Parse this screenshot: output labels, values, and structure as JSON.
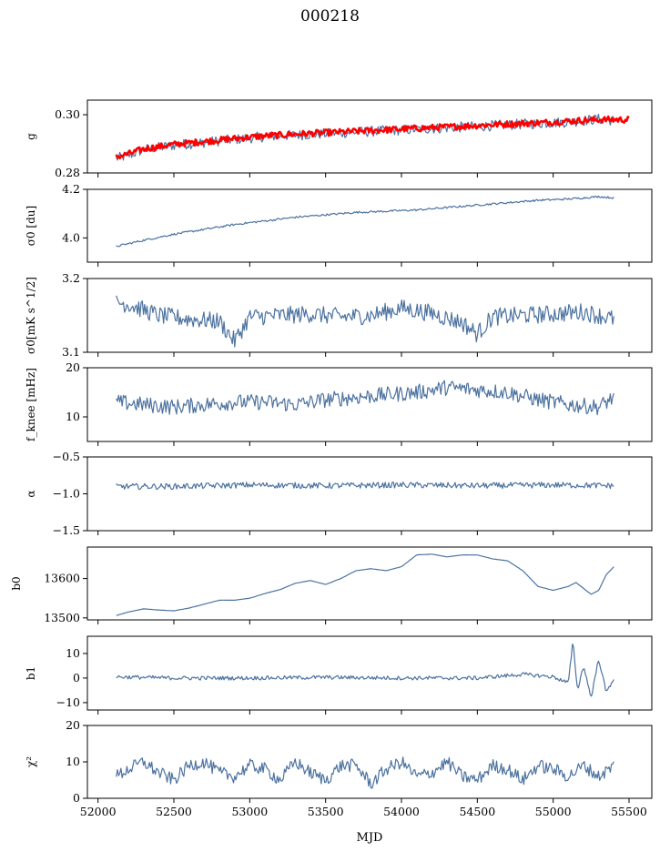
{
  "title": "000218",
  "xlabel": "MJD",
  "colors": {
    "series": "#4c72a0",
    "model": "#ff0000",
    "frame": "#000000"
  },
  "chart_data": [
    {
      "type": "line",
      "panel": "g",
      "ylabel": "g",
      "ylim": [
        0.28,
        0.305
      ],
      "yticks": [
        0.28,
        0.3
      ],
      "ytick_labels": [
        "0.28",
        "0.30"
      ],
      "xlim": [
        51930,
        55650
      ],
      "series": [
        {
          "role": "measured",
          "color": "#4c72a0",
          "x": [
            52120,
            52200,
            52300,
            52500,
            52700,
            52900,
            53100,
            53300,
            53500,
            53700,
            53900,
            54100,
            54300,
            54500,
            54700,
            54900,
            55100,
            55300,
            55400
          ],
          "y": [
            0.285,
            0.286,
            0.288,
            0.2895,
            0.2905,
            0.2915,
            0.2925,
            0.293,
            0.2935,
            0.294,
            0.2945,
            0.295,
            0.2955,
            0.296,
            0.2965,
            0.297,
            0.2975,
            0.2985,
            0.298
          ]
        },
        {
          "role": "fit",
          "color": "#ff0000",
          "x": [
            52120,
            52200,
            52300,
            52500,
            52700,
            52900,
            53100,
            53300,
            53500,
            53700,
            53900,
            54100,
            54300,
            54500,
            54700,
            54900,
            55100,
            55300,
            55500
          ],
          "y": [
            0.2855,
            0.2865,
            0.2882,
            0.2898,
            0.2908,
            0.2918,
            0.2927,
            0.2933,
            0.2938,
            0.2943,
            0.2948,
            0.2953,
            0.2958,
            0.2963,
            0.2968,
            0.2972,
            0.2978,
            0.2983,
            0.2983
          ]
        }
      ]
    },
    {
      "type": "line",
      "panel": "sigma0_du",
      "ylabel": "σ0 [du]",
      "ylim": [
        3.9,
        4.2
      ],
      "yticks": [
        4.0,
        4.2
      ],
      "ytick_labels": [
        "4.0",
        "4.2"
      ],
      "xlim": [
        51930,
        55650
      ],
      "series": [
        {
          "color": "#4c72a0",
          "x": [
            52120,
            52300,
            52500,
            52700,
            52900,
            53100,
            53300,
            53500,
            53700,
            53900,
            54100,
            54300,
            54500,
            54700,
            54900,
            55100,
            55300,
            55400
          ],
          "y": [
            3.965,
            3.99,
            4.015,
            4.035,
            4.055,
            4.07,
            4.085,
            4.095,
            4.105,
            4.11,
            4.115,
            4.125,
            4.135,
            4.145,
            4.155,
            4.16,
            4.17,
            4.165
          ]
        }
      ]
    },
    {
      "type": "line",
      "panel": "sigma0_mk",
      "ylabel": "σ0[mK s^1/2]",
      "ylim": [
        3.1,
        3.2
      ],
      "yticks": [
        3.1,
        3.2
      ],
      "ytick_labels": [
        "3.1",
        "3.2"
      ],
      "xlim": [
        51930,
        55650
      ],
      "series": [
        {
          "color": "#4c72a0",
          "x": [
            52120,
            52200,
            52400,
            52600,
            52800,
            52900,
            53000,
            53200,
            53400,
            53600,
            53800,
            54000,
            54200,
            54400,
            54500,
            54600,
            54800,
            55000,
            55200,
            55400
          ],
          "y": [
            3.168,
            3.165,
            3.15,
            3.145,
            3.142,
            3.115,
            3.148,
            3.15,
            3.152,
            3.148,
            3.15,
            3.16,
            3.153,
            3.14,
            3.125,
            3.148,
            3.15,
            3.152,
            3.155,
            3.145
          ]
        }
      ]
    },
    {
      "type": "line",
      "panel": "fknee",
      "ylabel": "f_knee [mHz]",
      "ylim": [
        5,
        20
      ],
      "yticks": [
        10,
        20
      ],
      "ytick_labels": [
        "10",
        "20"
      ],
      "xlim": [
        51930,
        55650
      ],
      "series": [
        {
          "color": "#4c72a0",
          "x": [
            52120,
            52300,
            52500,
            52700,
            52900,
            53100,
            53300,
            53500,
            53700,
            53900,
            54100,
            54300,
            54500,
            54700,
            54900,
            55100,
            55300,
            55400
          ],
          "y": [
            13,
            12.5,
            12,
            12.5,
            13,
            13,
            12.5,
            13.5,
            14,
            14.5,
            15,
            16,
            15.5,
            15,
            13.5,
            12.5,
            12,
            14
          ]
        }
      ]
    },
    {
      "type": "line",
      "panel": "alpha",
      "ylabel": "α",
      "ylim": [
        -1.5,
        -0.5
      ],
      "yticks": [
        -1.5,
        -1.0,
        -0.5
      ],
      "ytick_labels": [
        "−1.5",
        "−1.0",
        "−0.5"
      ],
      "xlim": [
        51930,
        55650
      ],
      "series": [
        {
          "color": "#4c72a0",
          "x": [
            52120,
            52500,
            53000,
            53500,
            54000,
            54500,
            55000,
            55400
          ],
          "y": [
            -0.9,
            -0.9,
            -0.88,
            -0.89,
            -0.88,
            -0.89,
            -0.88,
            -0.89
          ]
        }
      ]
    },
    {
      "type": "line",
      "panel": "b0",
      "ylabel": "b0",
      "ylim": [
        13495,
        13680
      ],
      "yticks": [
        13500,
        13600
      ],
      "ytick_labels": [
        "13500",
        "13600"
      ],
      "xlim": [
        51930,
        55650
      ],
      "series": [
        {
          "color": "#4c72a0",
          "x": [
            52120,
            52200,
            52300,
            52400,
            52500,
            52600,
            52700,
            52800,
            52900,
            53000,
            53100,
            53200,
            53300,
            53400,
            53500,
            53600,
            53700,
            53800,
            53900,
            54000,
            54100,
            54200,
            54300,
            54400,
            54500,
            54600,
            54700,
            54800,
            54900,
            55000,
            55100,
            55150,
            55200,
            55250,
            55300,
            55350,
            55400
          ],
          "y": [
            13506,
            13515,
            13523,
            13520,
            13518,
            13525,
            13535,
            13545,
            13545,
            13550,
            13562,
            13572,
            13588,
            13595,
            13585,
            13600,
            13620,
            13625,
            13620,
            13630,
            13660,
            13662,
            13655,
            13660,
            13660,
            13650,
            13645,
            13620,
            13580,
            13570,
            13580,
            13590,
            13575,
            13560,
            13570,
            13610,
            13630
          ]
        }
      ]
    },
    {
      "type": "line",
      "panel": "b1",
      "ylabel": "b1",
      "ylim": [
        -13,
        17
      ],
      "yticks": [
        -10,
        0,
        10
      ],
      "ytick_labels": [
        "−10",
        "0",
        "10"
      ],
      "xlim": [
        51930,
        55650
      ],
      "series": [
        {
          "color": "#4c72a0",
          "x": [
            52120,
            52500,
            53000,
            53500,
            54000,
            54500,
            54800,
            55000,
            55100,
            55130,
            55160,
            55200,
            55250,
            55300,
            55350,
            55400
          ],
          "y": [
            0.5,
            0,
            0,
            0.3,
            0,
            0,
            1.5,
            0.5,
            -2,
            15,
            -5,
            5,
            -8,
            8,
            -6,
            0
          ]
        }
      ]
    },
    {
      "type": "line",
      "panel": "chi2",
      "ylabel": "χ²",
      "ylim": [
        0,
        20
      ],
      "yticks": [
        0,
        10,
        20
      ],
      "ytick_labels": [
        "0",
        "10",
        "20"
      ],
      "xticks": [
        52000,
        52500,
        53000,
        53500,
        54000,
        54500,
        55000,
        55500
      ],
      "xtick_labels": [
        "52000",
        "52500",
        "53000",
        "53500",
        "54000",
        "54500",
        "55000",
        "55500"
      ],
      "xlim": [
        51930,
        55650
      ],
      "series": [
        {
          "color": "#4c72a0",
          "x": [
            52120,
            52200,
            52300,
            52400,
            52500,
            52600,
            52700,
            52800,
            52900,
            53000,
            53100,
            53200,
            53300,
            53400,
            53500,
            53600,
            53700,
            53800,
            53900,
            54000,
            54100,
            54200,
            54300,
            54400,
            54500,
            54600,
            54700,
            54800,
            54900,
            55000,
            55100,
            55200,
            55300,
            55400
          ],
          "y": [
            6,
            8,
            10,
            7,
            5,
            9,
            10,
            7,
            6,
            9,
            8,
            5,
            10,
            7,
            5,
            9,
            9,
            4,
            8,
            10,
            6,
            7,
            10,
            6,
            5,
            9,
            8,
            5,
            9,
            8,
            6,
            9,
            6,
            9
          ]
        }
      ]
    }
  ]
}
